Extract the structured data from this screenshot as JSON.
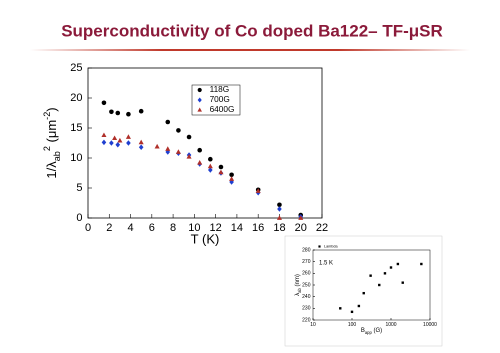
{
  "title": "Superconductivity of Co doped Ba122– TF-μSR",
  "chart_data": [
    {
      "type": "scatter",
      "xlabel": "T (K)",
      "ylabel": [
        "1/λ",
        "ab",
        "2",
        " (μm",
        "-2",
        ")"
      ],
      "xlim": [
        0,
        22
      ],
      "xticks": [
        0,
        2,
        4,
        6,
        8,
        10,
        12,
        14,
        16,
        18,
        20,
        22
      ],
      "ylim": [
        0,
        25
      ],
      "yticks": [
        0,
        5,
        10,
        15,
        20,
        25
      ],
      "legend": "upper-center",
      "series": [
        {
          "name": "118G",
          "color": "#000000",
          "marker": "circle",
          "x": [
            1.5,
            2.2,
            2.8,
            3.8,
            5,
            7.5,
            8.5,
            9.5,
            10.5,
            11.5,
            12.5,
            13.5,
            16,
            18,
            20
          ],
          "values": [
            19.2,
            17.7,
            17.5,
            17.3,
            17.8,
            16,
            14.6,
            13.5,
            11.3,
            9.8,
            8.5,
            7.2,
            4.7,
            2.2,
            0.5
          ]
        },
        {
          "name": "700G",
          "color": "#1f3fd0",
          "marker": "diamond",
          "x": [
            1.5,
            2.2,
            2.8,
            3.8,
            5,
            7.5,
            8.5,
            9.5,
            10.5,
            11.5,
            12.5,
            13.5,
            16,
            18,
            20
          ],
          "values": [
            12.6,
            12.5,
            12.2,
            12.5,
            11.8,
            11,
            10.8,
            10.5,
            9,
            8,
            7.5,
            6,
            4.2,
            1.5,
            0.2
          ]
        },
        {
          "name": "6400G",
          "color": "#b0302a",
          "marker": "triangle",
          "x": [
            1.5,
            2.5,
            3,
            3.8,
            5,
            6.5,
            7.5,
            8.5,
            9.5,
            10.5,
            11.5,
            12.5,
            13.5,
            16,
            18,
            20
          ],
          "values": [
            13.8,
            13.3,
            12.9,
            13.5,
            12.6,
            11.9,
            11.5,
            11,
            10.2,
            9.2,
            8.6,
            7.6,
            6.5,
            4.5,
            0,
            0
          ]
        }
      ]
    },
    {
      "type": "scatter",
      "xlabel": [
        "B",
        "app",
        " (G)"
      ],
      "ylabel": [
        "λ",
        "ab",
        " (nm)"
      ],
      "annotation": "1.5 K",
      "xlog": true,
      "xlim": [
        10,
        10000
      ],
      "xticks": [
        10,
        100,
        1000,
        10000
      ],
      "ylim": [
        220,
        280
      ],
      "yticks": [
        220,
        230,
        240,
        250,
        260,
        270,
        280
      ],
      "legend": "upper-left",
      "series": [
        {
          "name": "Lambda",
          "color": "#000000",
          "marker": "square",
          "x": [
            50,
            100,
            150,
            200,
            300,
            500,
            700,
            1000,
            1500,
            2000,
            6000
          ],
          "values": [
            230,
            227,
            232,
            243,
            258,
            250,
            260,
            265,
            268,
            252,
            268
          ]
        }
      ]
    }
  ]
}
